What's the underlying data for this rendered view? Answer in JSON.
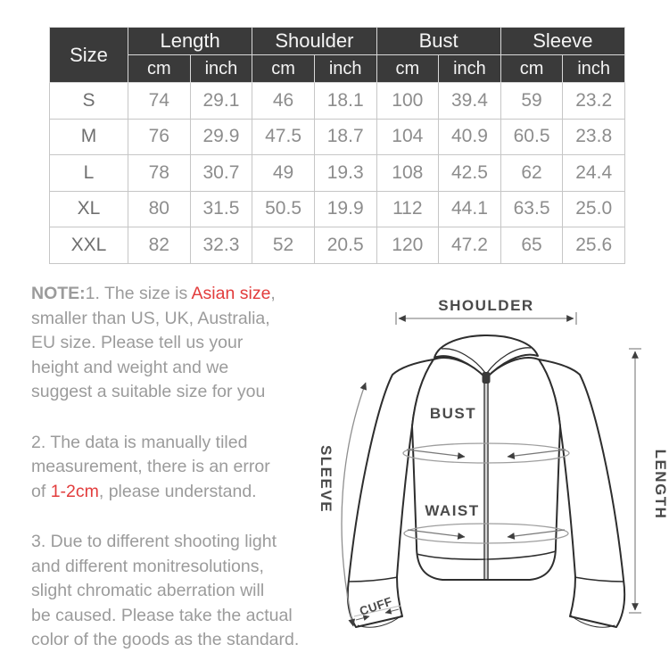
{
  "size_chart": {
    "corner_header": "Size",
    "groups": [
      "Length",
      "Shoulder",
      "Bust",
      "Sleeve"
    ],
    "unit_headers": [
      "cm",
      "inch",
      "cm",
      "inch",
      "cm",
      "inch",
      "cm",
      "inch"
    ],
    "rows": [
      {
        "size": "S",
        "values": [
          "74",
          "29.1",
          "46",
          "18.1",
          "100",
          "39.4",
          "59",
          "23.2"
        ]
      },
      {
        "size": "M",
        "values": [
          "76",
          "29.9",
          "47.5",
          "18.7",
          "104",
          "40.9",
          "60.5",
          "23.8"
        ]
      },
      {
        "size": "L",
        "values": [
          "78",
          "30.7",
          "49",
          "19.3",
          "108",
          "42.5",
          "62",
          "24.4"
        ]
      },
      {
        "size": "XL",
        "values": [
          "80",
          "31.5",
          "50.5",
          "19.9",
          "112",
          "44.1",
          "63.5",
          "25.0"
        ]
      },
      {
        "size": "XXL",
        "values": [
          "82",
          "32.3",
          "52",
          "20.5",
          "120",
          "47.2",
          "65",
          "25.6"
        ]
      }
    ]
  },
  "notes": {
    "paragraphs": [
      {
        "lines": [
          [
            {
              "t": "NOTE:",
              "bold": true
            },
            {
              "t": "1. The size is "
            },
            {
              "t": "Asian size",
              "red": true
            },
            {
              "t": ","
            }
          ],
          [
            {
              "t": "smaller than US, UK, Australia,"
            }
          ],
          [
            {
              "t": "EU size. Please tell us your"
            }
          ],
          [
            {
              "t": "height and weight and we"
            }
          ],
          [
            {
              "t": "suggest a suitable size for you"
            }
          ]
        ]
      },
      {
        "lines": [
          [
            {
              "t": "2. The data is manually tiled"
            }
          ],
          [
            {
              "t": "measurement, there is an error"
            }
          ],
          [
            {
              "t": "of "
            },
            {
              "t": "1-2cm",
              "red": true
            },
            {
              "t": ", please understand."
            }
          ]
        ]
      },
      {
        "lines": [
          [
            {
              "t": "3. Due to different shooting light"
            }
          ],
          [
            {
              "t": "and different monitresolutions,"
            }
          ],
          [
            {
              "t": "slight chromatic aberration will"
            }
          ],
          [
            {
              "t": "be caused. Please take the actual"
            }
          ],
          [
            {
              "t": "color of the goods as the standard."
            }
          ]
        ]
      }
    ]
  },
  "diagram": {
    "labels": {
      "shoulder": "SHOULDER",
      "bust": "BUST",
      "waist": "WAIST",
      "sleeve": "SLEEVE",
      "length": "LENGTH",
      "cuff": "CUFF"
    }
  },
  "colors": {
    "header_bg": "#3a3a3a",
    "header_text": "#f4f4f4",
    "table_text": "#8d8d8d",
    "note_text": "#9b9b9b",
    "accent_red": "#e23c3c",
    "outline": "#2e2e2e"
  }
}
